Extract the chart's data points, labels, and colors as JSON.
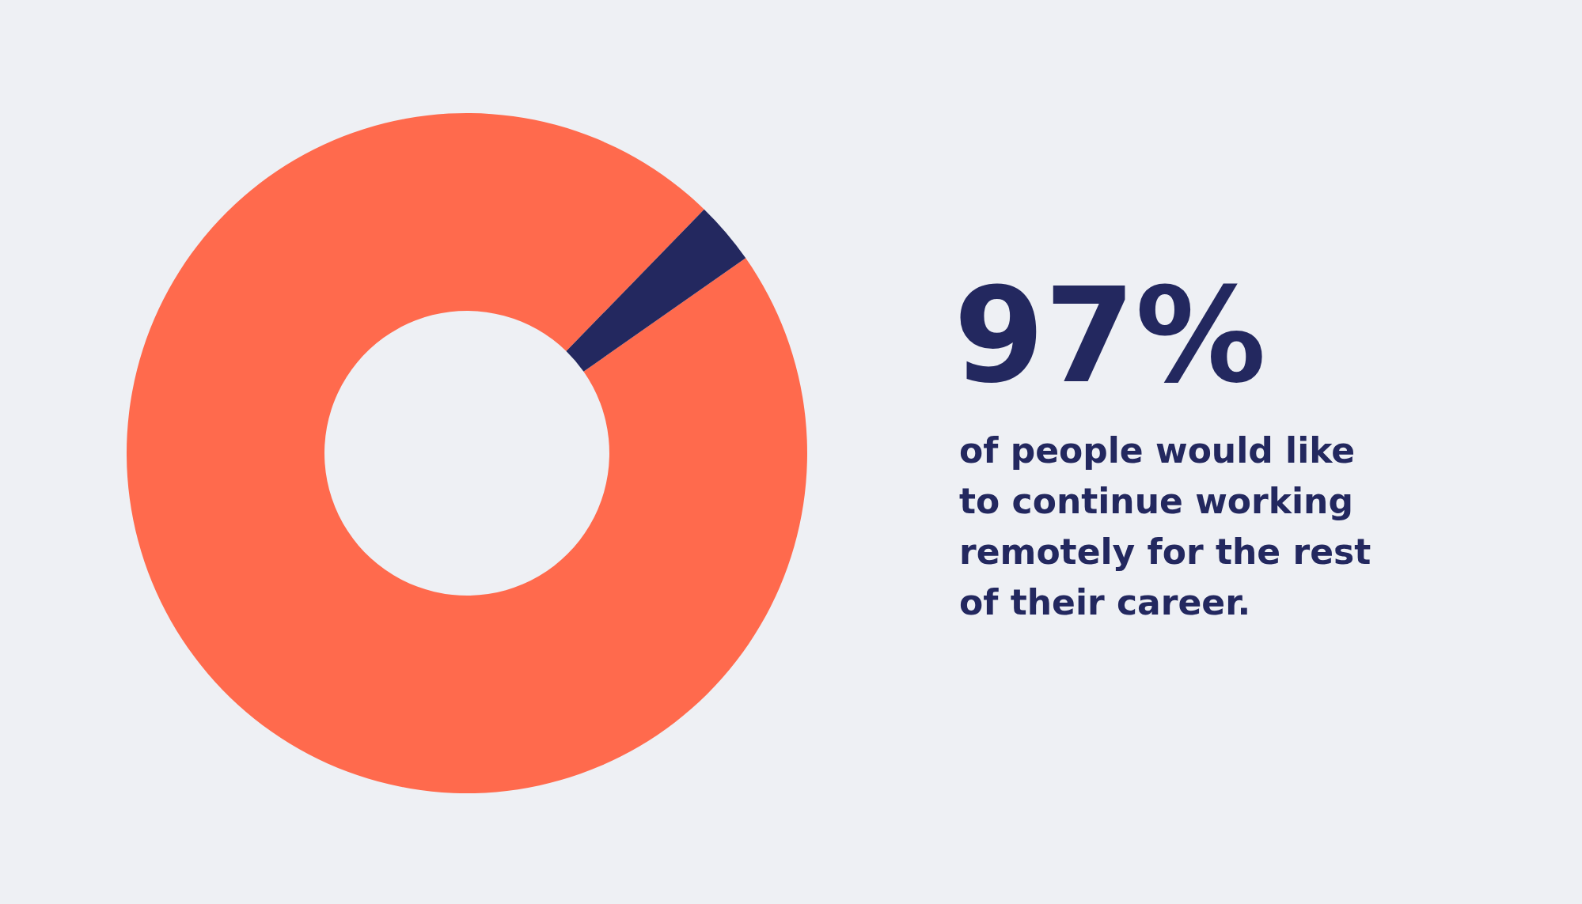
{
  "chart_data": {
    "type": "donut",
    "categories": [
      null,
      null
    ],
    "values": [
      97,
      3
    ],
    "colors": [
      "#ff6a4d",
      "#23285f"
    ],
    "annotations": [
      "97%",
      "of people would like to continue working remotely for the rest of their career."
    ]
  }
}
